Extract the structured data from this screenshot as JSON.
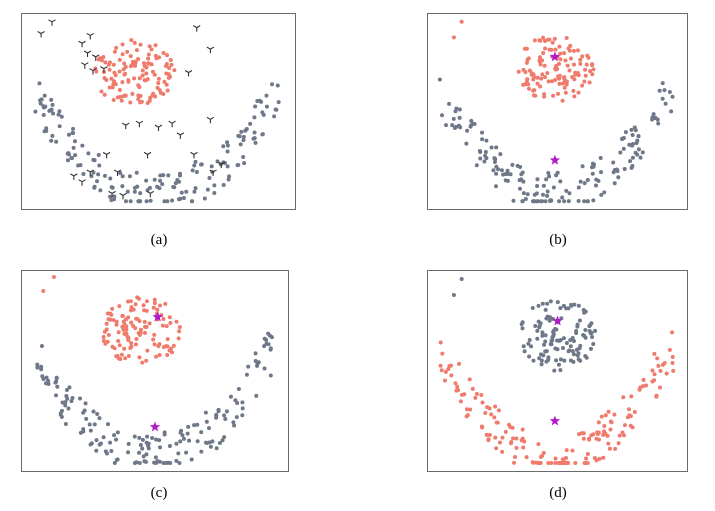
{
  "colors": {
    "cluster_a": "#f07b6c",
    "cluster_b": "#6e7888",
    "centroid": "#b01bc9",
    "outlier_marker": "#333333",
    "frame": "#6a6a6a"
  },
  "chart_data": [
    {
      "type": "scatter",
      "caption": "(a)",
      "xlim": [
        0,
        1
      ],
      "ylim": [
        0,
        1
      ],
      "grid": false,
      "axis_ticks": false,
      "series": [
        {
          "color_key": "cluster_a",
          "marker": "dot",
          "region": "blob",
          "center": [
            0.41,
            0.7
          ],
          "spread": [
            0.15,
            0.17
          ],
          "count": 120,
          "seed": 11
        },
        {
          "color_key": "cluster_b",
          "marker": "dot",
          "region": "arc",
          "count": 170,
          "seed": 23
        },
        {
          "color_key": "outlier_marker",
          "marker": "tri_down",
          "points": [
            [
              0.11,
              0.96
            ],
            [
              0.07,
              0.9
            ],
            [
              0.22,
              0.85
            ],
            [
              0.25,
              0.89
            ],
            [
              0.24,
              0.8
            ],
            [
              0.27,
              0.78
            ],
            [
              0.23,
              0.74
            ],
            [
              0.26,
              0.71
            ],
            [
              0.3,
              0.72
            ],
            [
              0.64,
              0.93
            ],
            [
              0.69,
              0.82
            ],
            [
              0.61,
              0.7
            ],
            [
              0.5,
              0.42
            ],
            [
              0.38,
              0.43
            ],
            [
              0.43,
              0.44
            ],
            [
              0.55,
              0.44
            ],
            [
              0.58,
              0.38
            ],
            [
              0.69,
              0.46
            ],
            [
              0.31,
              0.28
            ],
            [
              0.46,
              0.28
            ],
            [
              0.63,
              0.28
            ],
            [
              0.7,
              0.19
            ],
            [
              0.73,
              0.23
            ],
            [
              0.35,
              0.19
            ],
            [
              0.25,
              0.19
            ],
            [
              0.19,
              0.17
            ],
            [
              0.47,
              0.08
            ],
            [
              0.37,
              0.07
            ],
            [
              0.33,
              0.08
            ],
            [
              0.22,
              0.14
            ]
          ]
        }
      ]
    },
    {
      "type": "scatter",
      "caption": "(b)",
      "xlim": [
        0,
        1
      ],
      "ylim": [
        0,
        1
      ],
      "grid": false,
      "axis_ticks": false,
      "series": [
        {
          "color_key": "cluster_a",
          "marker": "dot",
          "region": "blob",
          "center": [
            0.49,
            0.72
          ],
          "spread": [
            0.15,
            0.17
          ],
          "count": 120,
          "seed": 31,
          "extra_points": [
            [
              0.13,
              0.96
            ],
            [
              0.1,
              0.88
            ]
          ]
        },
        {
          "color_key": "cluster_b",
          "marker": "dot",
          "region": "arc",
          "count": 170,
          "seed": 37
        },
        {
          "color_key": "centroid",
          "marker": "star",
          "points": [
            [
              0.49,
              0.78
            ],
            [
              0.49,
              0.25
            ]
          ]
        }
      ]
    },
    {
      "type": "scatter",
      "caption": "(c)",
      "xlim": [
        0,
        1
      ],
      "ylim": [
        0,
        1
      ],
      "grid": false,
      "axis_ticks": false,
      "series": [
        {
          "color_key": "cluster_a",
          "marker": "dot",
          "region": "blob",
          "center": [
            0.45,
            0.7
          ],
          "spread": [
            0.15,
            0.17
          ],
          "count": 120,
          "seed": 41,
          "extra_points": [
            [
              0.12,
              0.97
            ],
            [
              0.08,
              0.9
            ]
          ]
        },
        {
          "color_key": "cluster_b",
          "marker": "dot",
          "region": "arc",
          "count": 170,
          "seed": 43
        },
        {
          "color_key": "centroid",
          "marker": "star",
          "points": [
            [
              0.51,
              0.77
            ],
            [
              0.5,
              0.22
            ]
          ]
        }
      ]
    },
    {
      "type": "scatter",
      "caption": "(d)",
      "xlim": [
        0,
        1
      ],
      "ylim": [
        0,
        1
      ],
      "grid": false,
      "axis_ticks": false,
      "series": [
        {
          "color_key": "cluster_b",
          "marker": "dot",
          "region": "blob",
          "center": [
            0.5,
            0.68
          ],
          "spread": [
            0.15,
            0.18
          ],
          "count": 120,
          "seed": 51,
          "extra_points": [
            [
              0.13,
              0.96
            ],
            [
              0.1,
              0.88
            ]
          ]
        },
        {
          "color_key": "cluster_a",
          "marker": "dot",
          "region": "arc",
          "count": 170,
          "seed": 53
        },
        {
          "color_key": "centroid",
          "marker": "star",
          "points": [
            [
              0.5,
              0.75
            ],
            [
              0.49,
              0.25
            ]
          ]
        }
      ]
    }
  ]
}
